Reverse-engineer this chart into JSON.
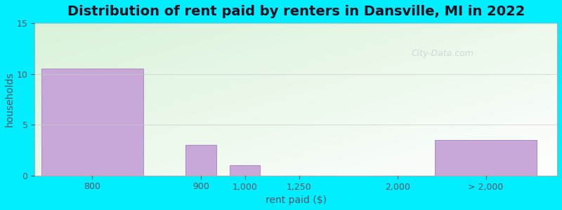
{
  "title": "Distribution of rent paid by renters in Dansville, MI in 2022",
  "xlabel": "rent paid ($)",
  "ylabel": "households",
  "bar_labels": [
    "800",
    "900",
    "1,000",
    "1,250",
    "2,000",
    "> 2,000"
  ],
  "bar_positions": [
    0.5,
    2.1,
    2.75,
    3.55,
    5.0,
    6.3
  ],
  "bar_heights": [
    10.5,
    3.0,
    1.0,
    0.0,
    0.0,
    3.5
  ],
  "bar_widths": [
    1.5,
    0.45,
    0.45,
    0.45,
    0.45,
    1.5
  ],
  "bar_color": "#c8a8d8",
  "bar_edge_color": "#b090c0",
  "background_outer": "#00eeff",
  "ylim": [
    0,
    15
  ],
  "yticks": [
    0,
    5,
    10,
    15
  ],
  "xlim": [
    -0.35,
    7.35
  ],
  "title_fontsize": 14,
  "label_fontsize": 10,
  "tick_fontsize": 9,
  "watermark_text": "City-Data.com",
  "watermark_color": "#b0b8c8",
  "watermark_alpha": 0.5
}
